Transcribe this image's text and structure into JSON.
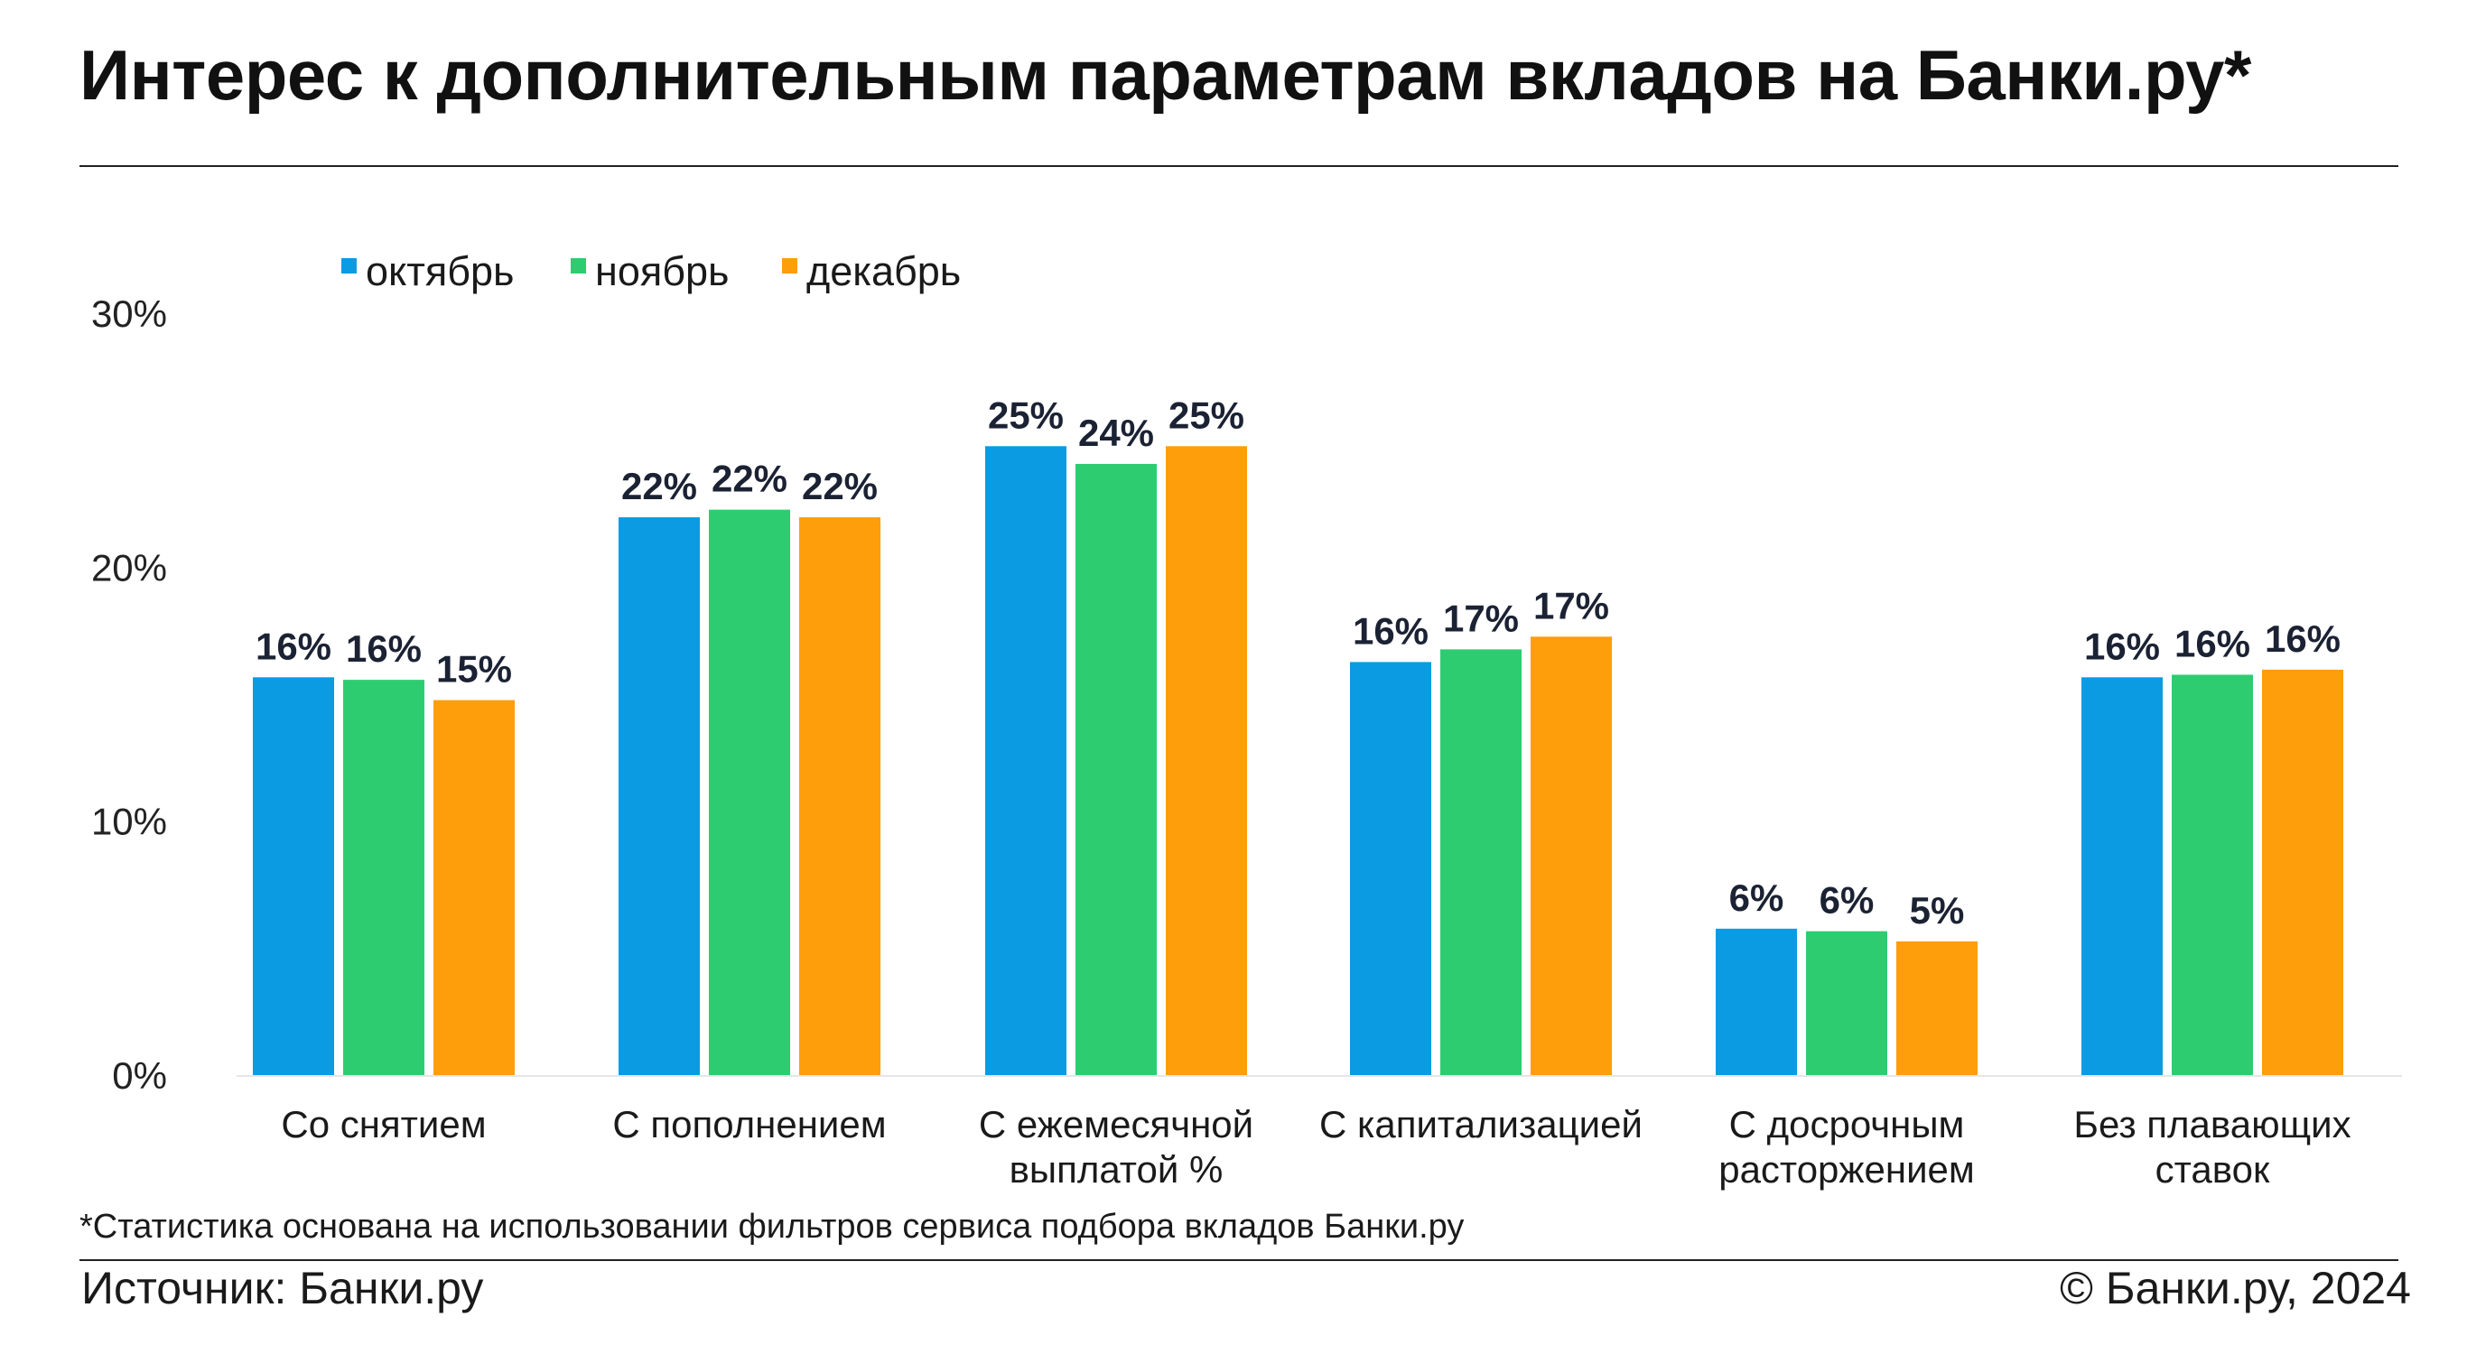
{
  "title": "Интерес к дополнительным параметрам вкладов на Банки.ру*",
  "footnote": "*Статистика основана на использовании фильтров сервиса подбора вкладов Банки.ру",
  "source": "Источник: Банки.ру",
  "copyright": "© Банки.ру, 2024",
  "colors": {
    "октябрь": "#0a9be3",
    "ноябрь": "#2ecc71",
    "декабрь": "#ff9e0b"
  },
  "chart_data": {
    "type": "bar",
    "title": "Интерес к дополнительным параметрам вкладов на Банки.ру*",
    "xlabel": "",
    "ylabel": "",
    "ylim": [
      0,
      30
    ],
    "y_ticks": [
      "0%",
      "10%",
      "20%",
      "30%"
    ],
    "grid": false,
    "legend_position": "top-left",
    "categories": [
      [
        "Со снятием"
      ],
      [
        "С пополнением"
      ],
      [
        "С ежемесячной",
        "выплатой %"
      ],
      [
        "С капитализацией"
      ],
      [
        "С досрочным",
        "расторжением"
      ],
      [
        "Без плавающих",
        "ставок"
      ]
    ],
    "series": [
      {
        "name": "октябрь",
        "color": "#0a9be3",
        "values": [
          15.7,
          22.0,
          24.8,
          16.3,
          5.8,
          15.7
        ],
        "labels": [
          "16%",
          "22%",
          "25%",
          "16%",
          "6%",
          "16%"
        ]
      },
      {
        "name": "ноябрь",
        "color": "#2ecc71",
        "values": [
          15.6,
          22.3,
          24.1,
          16.8,
          5.7,
          15.8
        ],
        "labels": [
          "16%",
          "22%",
          "24%",
          "17%",
          "6%",
          "16%"
        ]
      },
      {
        "name": "декабрь",
        "color": "#ff9e0b",
        "values": [
          14.8,
          22.0,
          24.8,
          17.3,
          5.3,
          16.0
        ],
        "labels": [
          "15%",
          "22%",
          "25%",
          "17%",
          "5%",
          "16%"
        ]
      }
    ]
  }
}
